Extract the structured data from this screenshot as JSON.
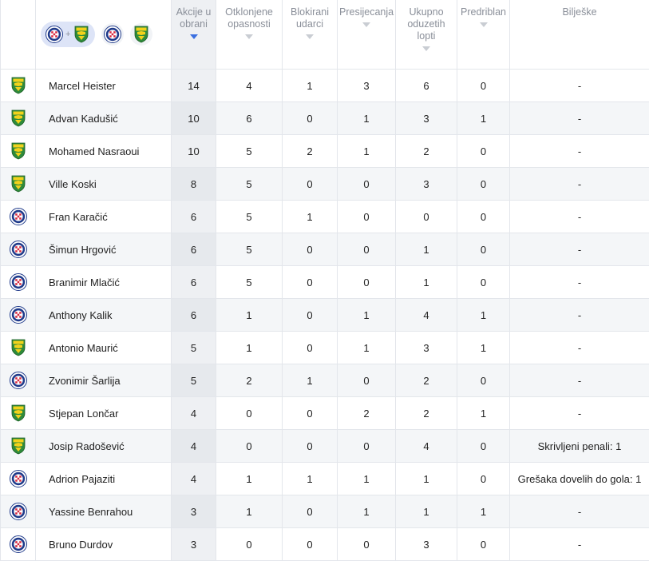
{
  "header": {
    "team_filter": {
      "plus_symbol": "+",
      "teams": [
        "hajduk-crest-icon",
        "istra-crest-icon"
      ]
    },
    "columns": [
      {
        "key": "akcije",
        "label": "Akcije u obrani",
        "sorted": true
      },
      {
        "key": "otklonjene",
        "label": "Otklonjene opasnosti",
        "sorted": false
      },
      {
        "key": "blokirani",
        "label": "Blokirani udarci",
        "sorted": false
      },
      {
        "key": "presijecanja",
        "label": "Presijecanja",
        "sorted": false
      },
      {
        "key": "ukupno",
        "label": "Ukupno oduzetih lopti",
        "sorted": false
      },
      {
        "key": "predriblan",
        "label": "Predriblan",
        "sorted": false
      },
      {
        "key": "biljeske",
        "label": "Bilješke",
        "sorted": false
      }
    ]
  },
  "colors": {
    "hajduk_red": "#d7263d",
    "hajduk_blue": "#1f3a8a",
    "istra_green": "#2e8b3a",
    "istra_yellow": "#f2d21b",
    "sort_active": "#3b6fe0"
  },
  "rows": [
    {
      "team": "istra",
      "name": "Marcel Heister",
      "akcije": "14",
      "otklonjene": "4",
      "blokirani": "1",
      "presijecanja": "3",
      "ukupno": "6",
      "predriblan": "0",
      "biljeske": "-"
    },
    {
      "team": "istra",
      "name": "Advan Kadušić",
      "akcije": "10",
      "otklonjene": "6",
      "blokirani": "0",
      "presijecanja": "1",
      "ukupno": "3",
      "predriblan": "1",
      "biljeske": "-"
    },
    {
      "team": "istra",
      "name": "Mohamed Nasraoui",
      "akcije": "10",
      "otklonjene": "5",
      "blokirani": "2",
      "presijecanja": "1",
      "ukupno": "2",
      "predriblan": "0",
      "biljeske": "-"
    },
    {
      "team": "istra",
      "name": "Ville Koski",
      "akcije": "8",
      "otklonjene": "5",
      "blokirani": "0",
      "presijecanja": "0",
      "ukupno": "3",
      "predriblan": "0",
      "biljeske": "-"
    },
    {
      "team": "hajduk",
      "name": "Fran Karačić",
      "akcije": "6",
      "otklonjene": "5",
      "blokirani": "1",
      "presijecanja": "0",
      "ukupno": "0",
      "predriblan": "0",
      "biljeske": "-"
    },
    {
      "team": "hajduk",
      "name": "Šimun Hrgović",
      "akcije": "6",
      "otklonjene": "5",
      "blokirani": "0",
      "presijecanja": "0",
      "ukupno": "1",
      "predriblan": "0",
      "biljeske": "-"
    },
    {
      "team": "hajduk",
      "name": "Branimir Mlačić",
      "akcije": "6",
      "otklonjene": "5",
      "blokirani": "0",
      "presijecanja": "0",
      "ukupno": "1",
      "predriblan": "0",
      "biljeske": "-"
    },
    {
      "team": "hajduk",
      "name": "Anthony Kalik",
      "akcije": "6",
      "otklonjene": "1",
      "blokirani": "0",
      "presijecanja": "1",
      "ukupno": "4",
      "predriblan": "1",
      "biljeske": "-"
    },
    {
      "team": "istra",
      "name": "Antonio Maurić",
      "akcije": "5",
      "otklonjene": "1",
      "blokirani": "0",
      "presijecanja": "1",
      "ukupno": "3",
      "predriblan": "1",
      "biljeske": "-"
    },
    {
      "team": "hajduk",
      "name": "Zvonimir Šarlija",
      "akcije": "5",
      "otklonjene": "2",
      "blokirani": "1",
      "presijecanja": "0",
      "ukupno": "2",
      "predriblan": "0",
      "biljeske": "-"
    },
    {
      "team": "istra",
      "name": "Stjepan Lončar",
      "akcije": "4",
      "otklonjene": "0",
      "blokirani": "0",
      "presijecanja": "2",
      "ukupno": "2",
      "predriblan": "1",
      "biljeske": "-"
    },
    {
      "team": "istra",
      "name": "Josip Radošević",
      "akcije": "4",
      "otklonjene": "0",
      "blokirani": "0",
      "presijecanja": "0",
      "ukupno": "4",
      "predriblan": "0",
      "biljeske": "Skrivljeni penali: 1"
    },
    {
      "team": "hajduk",
      "name": "Adrion Pajaziti",
      "akcije": "4",
      "otklonjene": "1",
      "blokirani": "1",
      "presijecanja": "1",
      "ukupno": "1",
      "predriblan": "0",
      "biljeske": "Grešaka dovelih do gola: 1"
    },
    {
      "team": "hajduk",
      "name": "Yassine Benrahou",
      "akcije": "3",
      "otklonjene": "1",
      "blokirani": "0",
      "presijecanja": "1",
      "ukupno": "1",
      "predriblan": "1",
      "biljeske": "-"
    },
    {
      "team": "hajduk",
      "name": "Bruno Durdov",
      "akcije": "3",
      "otklonjene": "0",
      "blokirani": "0",
      "presijecanja": "0",
      "ukupno": "3",
      "predriblan": "0",
      "biljeske": "-"
    }
  ]
}
